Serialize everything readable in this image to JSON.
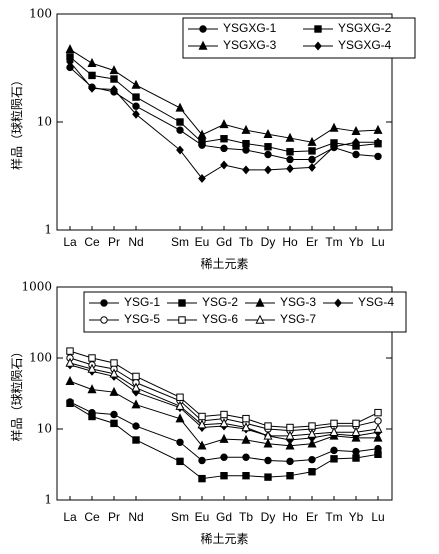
{
  "chart_data": [
    {
      "type": "line",
      "log_scale": true,
      "categories": [
        "La",
        "Ce",
        "Pr",
        "Nd",
        "Sm",
        "Eu",
        "Gd",
        "Tb",
        "Dy",
        "Ho",
        "Er",
        "Tm",
        "Yb",
        "Lu"
      ],
      "ylim": [
        1,
        100
      ],
      "yticks": [
        1,
        10,
        100
      ],
      "x_label": "稀土元素",
      "y_label": "样品（球粒陨石）",
      "series": [
        {
          "name": "YSGXG-1",
          "color": "#000000",
          "marker": "circle",
          "filled": true,
          "values": [
            32,
            21,
            19,
            14,
            8.4,
            6.1,
            5.7,
            5.5,
            5.0,
            4.5,
            4.5,
            5.8,
            5.0,
            4.8
          ]
        },
        {
          "name": "YSGXG-2",
          "color": "#000000",
          "marker": "square",
          "filled": true,
          "values": [
            40,
            27,
            25,
            17,
            10,
            6.5,
            7.0,
            6.3,
            5.9,
            5.3,
            5.4,
            6.4,
            6.0,
            6.3
          ]
        },
        {
          "name": "YSGXG-3",
          "color": "#000000",
          "marker": "triangle",
          "filled": true,
          "values": [
            47,
            35,
            30,
            22,
            13.5,
            7.6,
            9.5,
            8.4,
            7.7,
            7.1,
            6.5,
            8.8,
            8.2,
            8.4
          ]
        },
        {
          "name": "YSGXG-4",
          "color": "#000000",
          "marker": "diamond",
          "filled": true,
          "values": [
            36,
            20.5,
            20,
            11.8,
            5.5,
            3.0,
            4.0,
            3.6,
            3.6,
            3.7,
            3.8,
            5.9,
            6.5,
            6.5
          ]
        }
      ]
    },
    {
      "type": "line",
      "log_scale": true,
      "categories": [
        "La",
        "Ce",
        "Pr",
        "Nd",
        "Sm",
        "Eu",
        "Gd",
        "Tb",
        "Dy",
        "Ho",
        "Er",
        "Tm",
        "Yb",
        "Lu"
      ],
      "ylim": [
        1,
        1000
      ],
      "yticks": [
        1,
        10,
        100,
        1000
      ],
      "x_label": "稀土元素",
      "y_label": "样品（球粒陨石）",
      "series": [
        {
          "name": "YSG-1",
          "color": "#000000",
          "marker": "circle",
          "filled": true,
          "values": [
            24,
            17,
            16,
            11,
            6.5,
            3.6,
            4.0,
            4.0,
            3.6,
            3.5,
            3.7,
            5.0,
            4.8,
            5.3
          ]
        },
        {
          "name": "YSG-2",
          "color": "#000000",
          "marker": "square",
          "filled": true,
          "values": [
            23,
            15,
            12,
            7,
            3.5,
            2.0,
            2.2,
            2.2,
            2.1,
            2.2,
            2.5,
            3.8,
            3.9,
            4.4
          ]
        },
        {
          "name": "YSG-3",
          "color": "#000000",
          "marker": "triangle",
          "filled": true,
          "values": [
            47,
            36,
            33,
            22,
            14,
            5.8,
            7.2,
            7.0,
            6.2,
            5.8,
            6.2,
            8.0,
            7.5,
            7.5
          ]
        },
        {
          "name": "YSG-4",
          "color": "#000000",
          "marker": "diamond",
          "filled": true,
          "values": [
            80,
            65,
            55,
            33,
            20,
            10.5,
            11,
            10,
            8,
            7,
            7.5,
            8.5,
            8,
            9
          ]
        },
        {
          "name": "YSG-5",
          "color": "#000000",
          "marker": "circle",
          "filled": false,
          "values": [
            100,
            80,
            70,
            45,
            25,
            13,
            14,
            12,
            10,
            9.5,
            10,
            11,
            11,
            13
          ]
        },
        {
          "name": "YSG-6",
          "color": "#000000",
          "marker": "square",
          "filled": false,
          "values": [
            125,
            100,
            85,
            55,
            28,
            15,
            16,
            14,
            11,
            10.5,
            11,
            12,
            12,
            17
          ]
        },
        {
          "name": "YSG-7",
          "color": "#000000",
          "marker": "triangle",
          "filled": false,
          "values": [
            85,
            70,
            60,
            38,
            21,
            11.5,
            12,
            10.5,
            8,
            8,
            8.5,
            9,
            9,
            10
          ]
        }
      ]
    }
  ]
}
